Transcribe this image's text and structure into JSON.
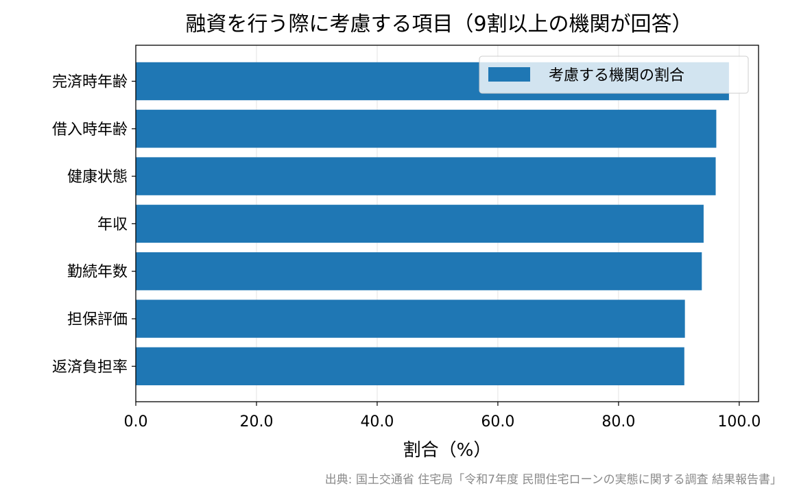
{
  "chart_data": {
    "type": "bar",
    "orientation": "horizontal",
    "title": "融資を行う際に考慮する項目（9割以上の機関が回答）",
    "xlabel": "割合（%）",
    "ylabel": "",
    "categories": [
      "完済時年齢",
      "借入時年齢",
      "健康状態",
      "年収",
      "勤続年数",
      "担保評価",
      "返済負担率"
    ],
    "series": [
      {
        "name": "考慮する機関の割合",
        "values": [
          98.3,
          96.2,
          96.1,
          94.1,
          93.8,
          91.0,
          90.9
        ]
      }
    ],
    "xlim": [
      0,
      103.2
    ],
    "xticks": [
      "0.0",
      "20.0",
      "40.0",
      "60.0",
      "80.0",
      "100.0"
    ],
    "xtick_values": [
      0,
      20,
      40,
      60,
      80,
      100
    ],
    "grid": "vertical",
    "legend_position": "top-right",
    "bar_color": "#1f77b4"
  },
  "source_note": "出典: 国土交通省 住宅局「令和7年度 民間住宅ローンの実態に関する調査 結果報告書」"
}
